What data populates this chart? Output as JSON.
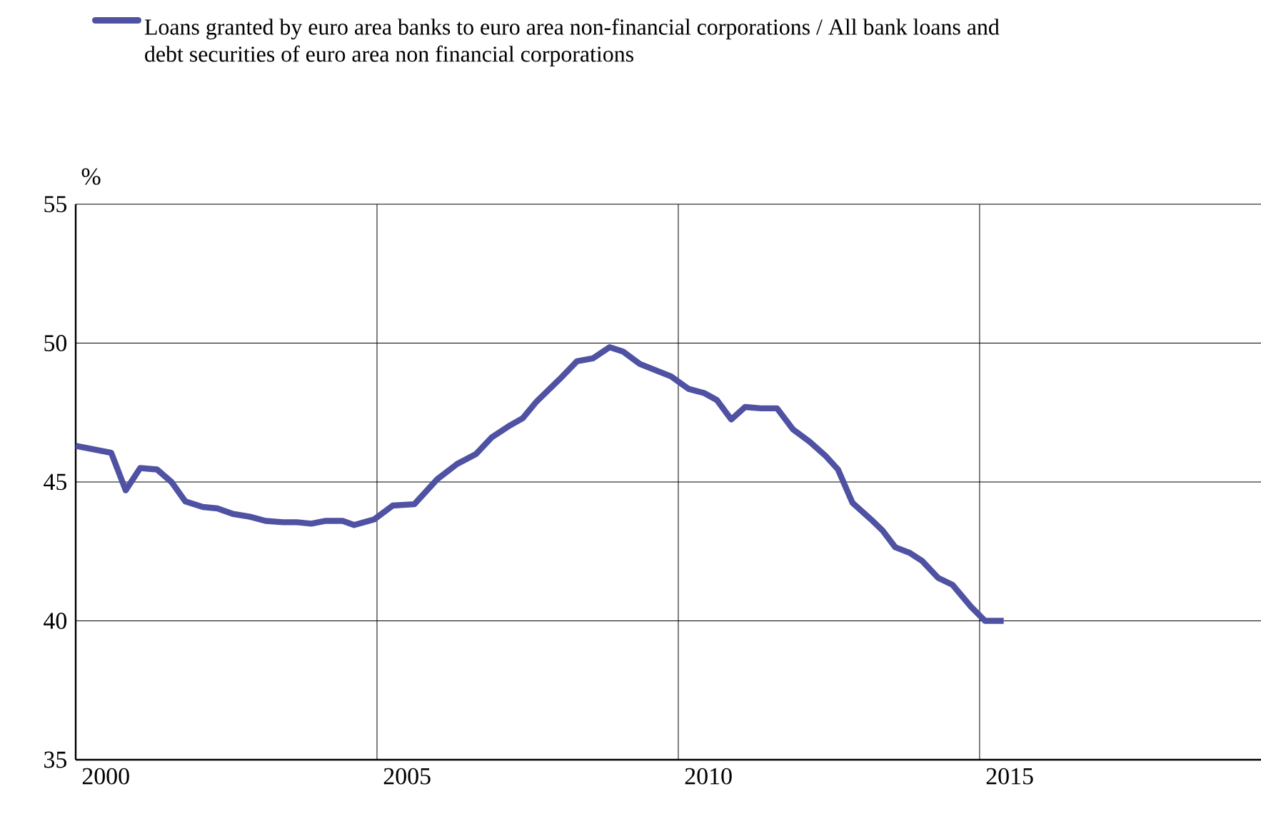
{
  "chart_data": {
    "type": "line",
    "ylabel": "%",
    "xlim": [
      2000,
      2019.67
    ],
    "ylim": [
      35,
      55
    ],
    "xticks": [
      {
        "value": 2000.5,
        "label": "2000"
      },
      {
        "value": 2005.5,
        "label": "2005"
      },
      {
        "value": 2010.5,
        "label": "2010"
      },
      {
        "value": 2015.5,
        "label": "2015"
      },
      {
        "value": 2005,
        "label": null
      },
      {
        "value": 2010,
        "label": null
      },
      {
        "value": 2015,
        "label": null
      }
    ],
    "yticks": [
      35,
      40,
      45,
      50,
      55
    ],
    "grid": true,
    "legend": "top left",
    "series": [
      {
        "name": "Loans granted by euro area banks to euro area non-financial corporations / All bank loans and debt securities of euro area non financial corporations",
        "color": "#4f52a3",
        "x": [
          2000.0,
          2000.59,
          2000.83,
          2001.07,
          2001.35,
          2001.59,
          2001.82,
          2002.11,
          2002.35,
          2002.61,
          2002.89,
          2003.15,
          2003.44,
          2003.67,
          2003.91,
          2004.15,
          2004.43,
          2004.62,
          2004.95,
          2005.26,
          2005.62,
          2006.0,
          2006.33,
          2006.64,
          2006.9,
          2007.18,
          2007.42,
          2007.65,
          2008.03,
          2008.32,
          2008.58,
          2008.86,
          2009.08,
          2009.36,
          2009.88,
          2010.17,
          2010.43,
          2010.64,
          2010.88,
          2011.11,
          2011.37,
          2011.64,
          2011.9,
          2012.18,
          2012.44,
          2012.65,
          2012.89,
          2013.2,
          2013.39,
          2013.6,
          2013.84,
          2014.05,
          2014.31,
          2014.55,
          2014.86,
          2015.09,
          2015.4
        ],
        "values": [
          46.3,
          46.05,
          44.7,
          45.5,
          45.45,
          45.0,
          44.3,
          44.1,
          44.05,
          43.85,
          43.75,
          43.6,
          43.55,
          43.55,
          43.5,
          43.6,
          43.6,
          43.45,
          43.65,
          44.15,
          44.2,
          45.1,
          45.65,
          46.0,
          46.6,
          47.0,
          47.3,
          47.9,
          48.7,
          49.35,
          49.45,
          49.85,
          49.7,
          49.25,
          48.8,
          48.35,
          48.2,
          47.95,
          47.25,
          47.7,
          47.65,
          47.65,
          46.9,
          46.45,
          45.95,
          45.45,
          44.25,
          43.65,
          43.25,
          42.65,
          42.45,
          42.15,
          41.55,
          41.3,
          40.5,
          40.0,
          40.0
        ]
      }
    ]
  }
}
